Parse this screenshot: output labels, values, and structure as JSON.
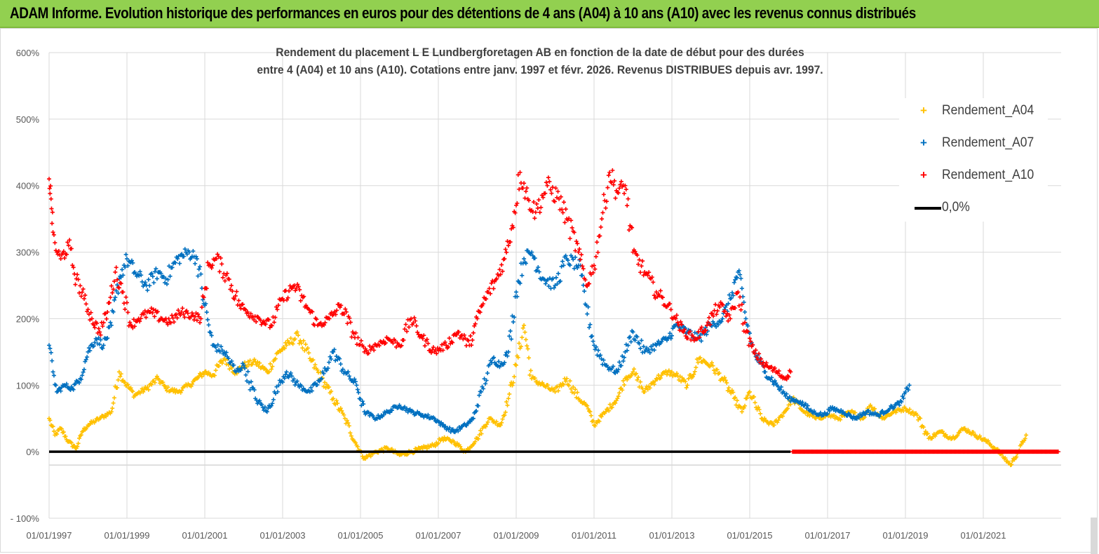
{
  "banner": {
    "title": "ADAM Informe. Evolution historique des performances en euros pour des détentions de 4 ans (A04) à 10 ans (A10) avec les revenus connus distribués"
  },
  "colors": {
    "banner_bg": "#92d050",
    "A04": "#ffc000",
    "A07": "#0070c0",
    "A10": "#ff0000",
    "zero": "#000000",
    "grid": "#d9d9d9"
  },
  "chart_data": {
    "type": "scatter",
    "title_lines": [
      "Rendement du placement L E Lundbergforetagen AB en fonction de la date de début pour des durées",
      "entre 4 (A04) et 10 ans (A10). Cotations entre janv. 1997 et févr. 2026. Revenus DISTRIBUES depuis avr. 1997."
    ],
    "ylim": [
      -100,
      600
    ],
    "y_ticks": [
      -100,
      0,
      100,
      200,
      300,
      400,
      500,
      600
    ],
    "y_tick_labels": [
      "- 100%",
      "0%",
      "100%",
      "200%",
      "300%",
      "400%",
      "500%",
      "600%"
    ],
    "x_range": [
      1997.0,
      2023.0
    ],
    "x_ticks": [
      1997,
      1999,
      2001,
      2003,
      2005,
      2007,
      2009,
      2011,
      2013,
      2015,
      2017,
      2019,
      2021
    ],
    "x_tick_labels": [
      "01/01/1997",
      "01/01/1999",
      "01/01/2001",
      "01/01/2003",
      "01/01/2005",
      "01/01/2007",
      "01/01/2009",
      "01/01/2011",
      "01/01/2013",
      "01/01/2015",
      "01/01/2017",
      "01/01/2019",
      "01/01/2021"
    ],
    "legend": [
      {
        "key": "A04",
        "label": "Rendement_A04",
        "kind": "marker"
      },
      {
        "key": "A07",
        "label": "Rendement_A07",
        "kind": "marker"
      },
      {
        "key": "A10",
        "label": "Rendement_A10",
        "kind": "marker"
      },
      {
        "key": "zero",
        "label": "0,0%",
        "kind": "line"
      }
    ],
    "series": [
      {
        "name": "Rendement_A04",
        "key": "A04",
        "x": [
          1997.0,
          1997.15,
          1997.3,
          1997.5,
          1997.7,
          1997.85,
          1998.0,
          1998.3,
          1998.6,
          1998.8,
          1999.0,
          1999.2,
          1999.5,
          1999.8,
          2000.0,
          2000.3,
          2000.6,
          2000.8,
          2001.0,
          2001.2,
          2001.5,
          2001.8,
          2002.0,
          2002.3,
          2002.6,
          2002.9,
          2003.1,
          2003.4,
          2003.7,
          2004.0,
          2004.3,
          2004.6,
          2004.9,
          2005.1,
          2005.4,
          2005.7,
          2006.0,
          2006.3,
          2006.6,
          2006.9,
          2007.1,
          2007.4,
          2007.7,
          2008.0,
          2008.3,
          2008.6,
          2008.8,
          2009.0,
          2009.2,
          2009.4,
          2009.7,
          2010.0,
          2010.3,
          2010.6,
          2010.8,
          2011.0,
          2011.3,
          2011.6,
          2011.8,
          2012.0,
          2012.3,
          2012.6,
          2012.9,
          2013.1,
          2013.4,
          2013.7,
          2014.0,
          2014.3,
          2014.6,
          2014.8,
          2015.0,
          2015.3,
          2015.6,
          2015.9,
          2016.1,
          2016.4,
          2016.7,
          2017.0,
          2017.3,
          2017.6,
          2017.9,
          2018.1,
          2018.4,
          2018.7,
          2019.0,
          2019.3,
          2019.6,
          2019.9,
          2020.2,
          2020.5,
          2020.8,
          2021.1,
          2021.4,
          2021.7,
          2021.9,
          2022.1
        ],
        "values": [
          50,
          25,
          35,
          15,
          5,
          30,
          40,
          50,
          60,
          120,
          100,
          85,
          95,
          110,
          95,
          90,
          100,
          110,
          120,
          115,
          140,
          120,
          130,
          135,
          120,
          150,
          160,
          175,
          140,
          110,
          80,
          50,
          10,
          -10,
          0,
          5,
          -5,
          0,
          5,
          10,
          20,
          15,
          0,
          20,
          50,
          40,
          80,
          130,
          190,
          110,
          100,
          90,
          110,
          80,
          70,
          40,
          60,
          80,
          110,
          120,
          90,
          110,
          120,
          115,
          100,
          140,
          130,
          110,
          80,
          60,
          90,
          50,
          40,
          60,
          80,
          60,
          50,
          55,
          50,
          60,
          50,
          70,
          50,
          60,
          65,
          55,
          20,
          30,
          20,
          35,
          25,
          15,
          0,
          -20,
          0,
          25
        ]
      },
      {
        "name": "Rendement_A07",
        "key": "A07",
        "x": [
          1997.0,
          1997.1,
          1997.2,
          1997.4,
          1997.6,
          1997.8,
          1998.0,
          1998.2,
          1998.4,
          1998.6,
          1998.8,
          1999.0,
          1999.2,
          1999.5,
          1999.8,
          2000.0,
          2000.3,
          2000.6,
          2000.8,
          2001.0,
          2001.2,
          2001.5,
          2001.8,
          2002.0,
          2002.3,
          2002.6,
          2002.9,
          2003.1,
          2003.4,
          2003.7,
          2004.0,
          2004.3,
          2004.6,
          2004.9,
          2005.1,
          2005.4,
          2005.7,
          2006.0,
          2006.3,
          2006.6,
          2006.9,
          2007.1,
          2007.4,
          2007.7,
          2007.9,
          2008.1,
          2008.4,
          2008.6,
          2008.8,
          2009.0,
          2009.2,
          2009.4,
          2009.7,
          2010.0,
          2010.3,
          2010.6,
          2010.8,
          2011.0,
          2011.3,
          2011.6,
          2011.8,
          2012.0,
          2012.3,
          2012.6,
          2012.9,
          2013.1,
          2013.4,
          2013.7,
          2014.0,
          2014.3,
          2014.5,
          2014.7,
          2014.9,
          2015.1,
          2015.4,
          2015.7,
          2016.0,
          2016.3,
          2016.6,
          2016.9,
          2017.1,
          2017.4,
          2017.7,
          2018.0,
          2018.3,
          2018.6,
          2018.9,
          2019.1
        ],
        "values": [
          160,
          120,
          90,
          100,
          95,
          110,
          150,
          170,
          160,
          190,
          260,
          290,
          270,
          250,
          270,
          260,
          290,
          300,
          290,
          220,
          160,
          150,
          120,
          130,
          80,
          60,
          100,
          120,
          100,
          90,
          110,
          150,
          120,
          100,
          60,
          50,
          60,
          70,
          60,
          55,
          50,
          40,
          30,
          40,
          50,
          90,
          140,
          130,
          150,
          240,
          290,
          300,
          260,
          250,
          290,
          280,
          220,
          160,
          130,
          120,
          150,
          180,
          150,
          160,
          170,
          190,
          180,
          170,
          190,
          200,
          230,
          270,
          200,
          150,
          120,
          100,
          80,
          75,
          60,
          55,
          65,
          60,
          50,
          60,
          55,
          65,
          75,
          100
        ]
      },
      {
        "name": "Rendement_A10",
        "key": "A10",
        "x": [
          1997.0,
          1997.05,
          1997.1,
          1997.2,
          1997.3,
          1997.5,
          1997.7,
          1997.9,
          1998.1,
          1998.3,
          1998.5,
          1998.7,
          1998.9,
          1999.1,
          1999.3,
          1999.6,
          1999.9,
          2000.1,
          2000.4,
          2000.7,
          2000.9,
          2001.1,
          2001.3,
          2001.6,
          2001.9,
          2002.1,
          2002.4,
          2002.7,
          2003.0,
          2003.3,
          2003.6,
          2003.9,
          2004.2,
          2004.5,
          2004.8,
          2005.1,
          2005.4,
          2005.7,
          2006.0,
          2006.3,
          2006.6,
          2006.9,
          2007.2,
          2007.5,
          2007.8,
          2008.0,
          2008.2,
          2008.5,
          2008.7,
          2008.9,
          2009.1,
          2009.3,
          2009.5,
          2009.8,
          2010.1,
          2010.3,
          2010.6,
          2010.8,
          2011.0,
          2011.2,
          2011.4,
          2011.6,
          2011.8,
          2012.0,
          2012.3,
          2012.6,
          2012.9,
          2013.1,
          2013.3,
          2013.6,
          2013.9,
          2014.2,
          2014.5,
          2014.7,
          2014.9,
          2015.1,
          2015.4,
          2015.7,
          2015.9,
          2016.05
        ],
        "values": [
          410,
          380,
          330,
          300,
          290,
          310,
          260,
          230,
          200,
          180,
          210,
          270,
          240,
          190,
          200,
          210,
          200,
          195,
          210,
          205,
          200,
          280,
          290,
          260,
          220,
          210,
          200,
          190,
          230,
          250,
          220,
          190,
          200,
          220,
          180,
          150,
          160,
          170,
          160,
          200,
          170,
          150,
          160,
          180,
          160,
          200,
          230,
          260,
          290,
          340,
          420,
          380,
          360,
          400,
          380,
          350,
          300,
          250,
          280,
          350,
          420,
          390,
          400,
          300,
          270,
          240,
          220,
          200,
          180,
          170,
          190,
          220,
          200,
          240,
          180,
          150,
          130,
          120,
          110,
          120
        ]
      },
      {
        "name": "0,0%",
        "key": "zero",
        "x": [
          1997.0,
          2016.05
        ],
        "values": [
          0,
          0
        ]
      }
    ]
  }
}
